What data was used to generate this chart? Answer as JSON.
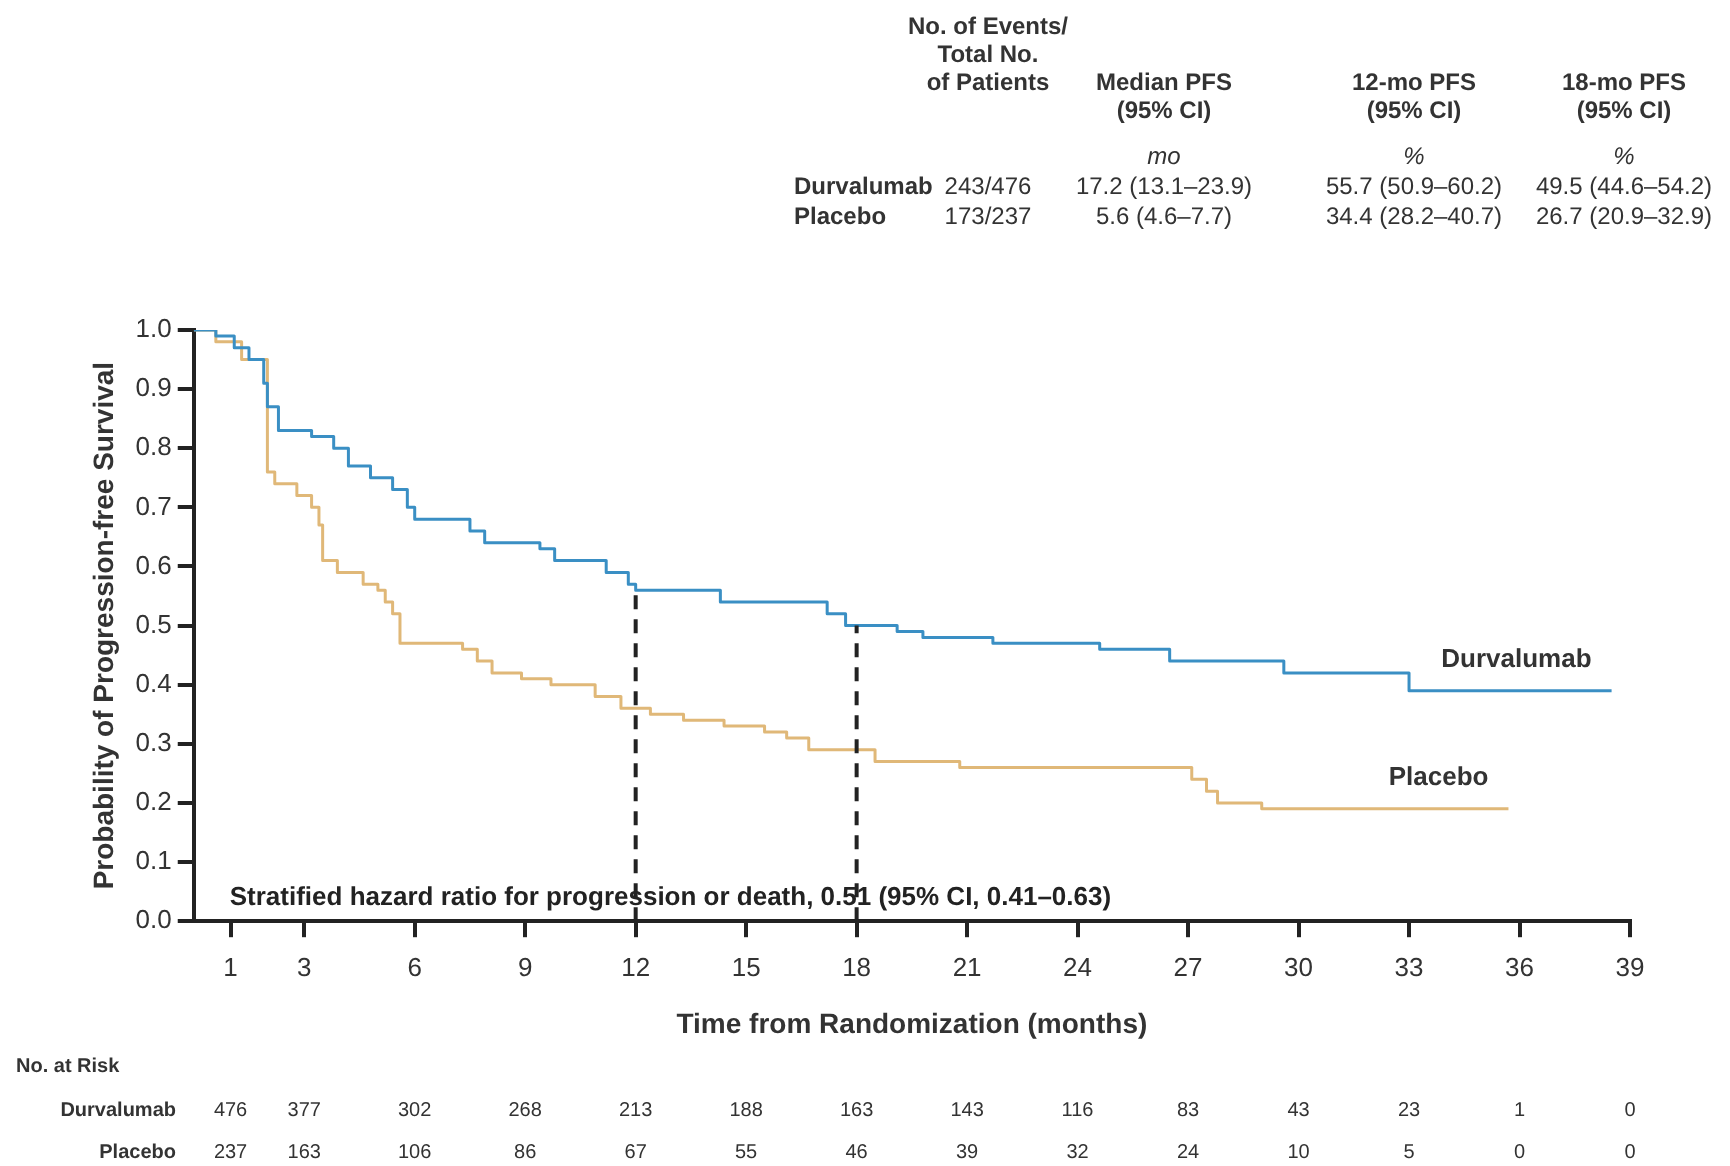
{
  "chart_data": {
    "type": "step",
    "xlabel": "Time from Randomization (months)",
    "ylabel": "Probability of Progression-free Survival",
    "xlim": [
      0,
      39
    ],
    "xticks": [
      1,
      3,
      6,
      9,
      12,
      15,
      18,
      21,
      24,
      27,
      30,
      33,
      36,
      39
    ],
    "ylim": [
      0,
      1
    ],
    "yticks": [
      {
        "value": 0,
        "label": "0.0"
      },
      {
        "value": 0.1,
        "label": "0.1"
      },
      {
        "value": 0.2,
        "label": "0.2"
      },
      {
        "value": 0.3,
        "label": "0.3"
      },
      {
        "value": 0.4,
        "label": "0.4"
      },
      {
        "value": 0.5,
        "label": "0.5"
      },
      {
        "value": 0.6,
        "label": "0.6"
      },
      {
        "value": 0.7,
        "label": "0.7"
      },
      {
        "value": 0.8,
        "label": "0.8"
      },
      {
        "value": 0.9,
        "label": "0.9"
      },
      {
        "value": 1,
        "label": "1.0"
      }
    ],
    "grid": false,
    "legend": false,
    "marker": "none",
    "line_style": "solid",
    "series": [
      {
        "name": "Durvalumab",
        "color": "#3a8fc4",
        "x": [
          0,
          0.6,
          1.1,
          1.5,
          1.9,
          2.0,
          2.3,
          3.2,
          3.8,
          4.2,
          4.8,
          5.4,
          5.8,
          6.0,
          7.5,
          7.9,
          9.4,
          9.8,
          11.2,
          11.8,
          12.0,
          14.3,
          17.2,
          17.7,
          19.1,
          19.8,
          21.7,
          24.6,
          26.5,
          29.6,
          33.0,
          38.5
        ],
        "values": [
          1.0,
          0.99,
          0.97,
          0.95,
          0.91,
          0.87,
          0.83,
          0.82,
          0.8,
          0.77,
          0.75,
          0.73,
          0.7,
          0.68,
          0.66,
          0.64,
          0.63,
          0.61,
          0.59,
          0.57,
          0.56,
          0.54,
          0.52,
          0.5,
          0.49,
          0.48,
          0.47,
          0.46,
          0.44,
          0.42,
          0.39,
          0.39
        ]
      },
      {
        "name": "Placebo",
        "color": "#e0b878",
        "x": [
          0,
          0.6,
          1.3,
          2.0,
          2.2,
          2.8,
          3.2,
          3.4,
          3.5,
          3.9,
          4.6,
          5.0,
          5.2,
          5.4,
          5.6,
          7.3,
          7.7,
          8.1,
          8.9,
          9.7,
          10.9,
          11.6,
          12.4,
          13.3,
          14.4,
          15.5,
          16.1,
          16.7,
          18.5,
          20.8,
          27.1,
          27.5,
          27.8,
          29.0,
          35.7
        ],
        "values": [
          1.0,
          0.98,
          0.95,
          0.76,
          0.74,
          0.72,
          0.7,
          0.67,
          0.61,
          0.59,
          0.57,
          0.56,
          0.54,
          0.52,
          0.47,
          0.46,
          0.44,
          0.42,
          0.41,
          0.4,
          0.38,
          0.36,
          0.35,
          0.34,
          0.33,
          0.32,
          0.31,
          0.29,
          0.27,
          0.26,
          0.24,
          0.22,
          0.2,
          0.19,
          0.19
        ]
      }
    ],
    "ref_lines": [
      {
        "axis": "x",
        "value": 12,
        "line_style": "dashed",
        "color": "#222222"
      },
      {
        "axis": "x",
        "value": 18,
        "line_style": "dashed",
        "color": "#222222"
      }
    ],
    "annotations": [
      "Stratified hazard ratio for progression or death, 0.51 (95% CI, 0.41–0.63)",
      "No. of Events/\nTotal No.\nof Patients",
      "Median PFS\n(95% CI)",
      "12-mo PFS\n(95% CI)",
      "18-mo PFS\n(95% CI)",
      "mo",
      "%",
      "%",
      "Durvalumab",
      "243/476",
      "17.2 (13.1–23.9)",
      "55.7 (50.9–60.2)",
      "49.5 (44.6–54.2)",
      "Placebo",
      "173/237",
      "5.6 (4.6–7.7)",
      "34.4 (28.2–40.7)",
      "26.7 (20.9–32.9)",
      "No. at Risk",
      "Durvalumab",
      "476",
      "377",
      "302",
      "268",
      "213",
      "188",
      "163",
      "143",
      "116",
      "83",
      "43",
      "23",
      "1",
      "0",
      "Placebo",
      "237",
      "163",
      "106",
      "86",
      "67",
      "55",
      "46",
      "39",
      "32",
      "24",
      "10",
      "5",
      "0",
      "0"
    ]
  }
}
